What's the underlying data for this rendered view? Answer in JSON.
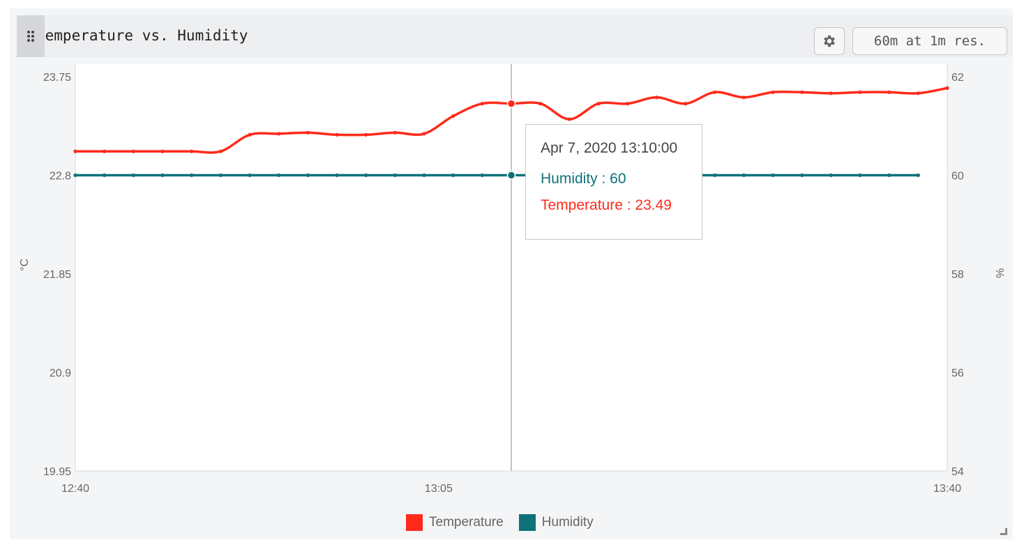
{
  "panel": {
    "title": "Temperature vs. Humidity",
    "range_label": "60m at 1m res."
  },
  "icons": {
    "drag": "drag-handle-icon",
    "settings": "gear-icon",
    "resize": "resize-corner-icon"
  },
  "colors": {
    "temperature": "#ff2a1a",
    "humidity": "#0f7179"
  },
  "tooltip": {
    "time": "Apr 7, 2020 13:10:00",
    "humidity": "Humidity : 60",
    "temperature": "Temperature : 23.49"
  },
  "chart_data": {
    "type": "line",
    "x_label": "",
    "y_left_label": "°C",
    "y_right_label": "%",
    "x_ticks": [
      "12:40",
      "13:05",
      "13:40"
    ],
    "x_range": [
      "12:40",
      "13:40"
    ],
    "y_left_ticks": [
      "19.95",
      "20.9",
      "21.85",
      "22.8",
      "23.75"
    ],
    "y_left_range": [
      19.95,
      23.75
    ],
    "y_right_ticks": [
      "54",
      "56",
      "58",
      "60",
      "62"
    ],
    "y_right_range": [
      54,
      62
    ],
    "legend": [
      "Temperature",
      "Humidity"
    ],
    "legend_position": "bottom",
    "grid": false,
    "cursor_time": "13:10",
    "series": [
      {
        "name": "Temperature",
        "axis": "left",
        "x": [
          "12:40",
          "12:42",
          "12:44",
          "12:46",
          "12:48",
          "12:50",
          "12:52",
          "12:54",
          "12:56",
          "12:58",
          "13:00",
          "13:02",
          "13:04",
          "13:06",
          "13:08",
          "13:10",
          "13:12",
          "13:14",
          "13:16",
          "13:18",
          "13:20",
          "13:22",
          "13:24",
          "13:26",
          "13:28",
          "13:30",
          "13:32",
          "13:34",
          "13:36",
          "13:38",
          "13:40"
        ],
        "values": [
          23.03,
          23.03,
          23.03,
          23.03,
          23.03,
          23.03,
          23.19,
          23.2,
          23.21,
          23.19,
          23.19,
          23.21,
          23.2,
          23.37,
          23.49,
          23.49,
          23.49,
          23.34,
          23.49,
          23.49,
          23.55,
          23.49,
          23.6,
          23.55,
          23.6,
          23.6,
          23.59,
          23.6,
          23.6,
          23.59,
          23.64
        ]
      },
      {
        "name": "Humidity",
        "axis": "right",
        "x": [
          "12:40",
          "12:42",
          "12:44",
          "12:46",
          "12:48",
          "12:50",
          "12:52",
          "12:54",
          "12:56",
          "12:58",
          "13:00",
          "13:02",
          "13:04",
          "13:06",
          "13:08",
          "13:10",
          "13:12",
          "13:14",
          "13:16",
          "13:18",
          "13:20",
          "13:22",
          "13:24",
          "13:26",
          "13:28",
          "13:30",
          "13:32",
          "13:34",
          "13:36",
          "13:38"
        ],
        "values": [
          60,
          60,
          60,
          60,
          60,
          60,
          60,
          60,
          60,
          60,
          60,
          60,
          60,
          60,
          60,
          60,
          60,
          60,
          60,
          60,
          60,
          60,
          60,
          60,
          60,
          60,
          60,
          60,
          60,
          60
        ]
      }
    ]
  }
}
